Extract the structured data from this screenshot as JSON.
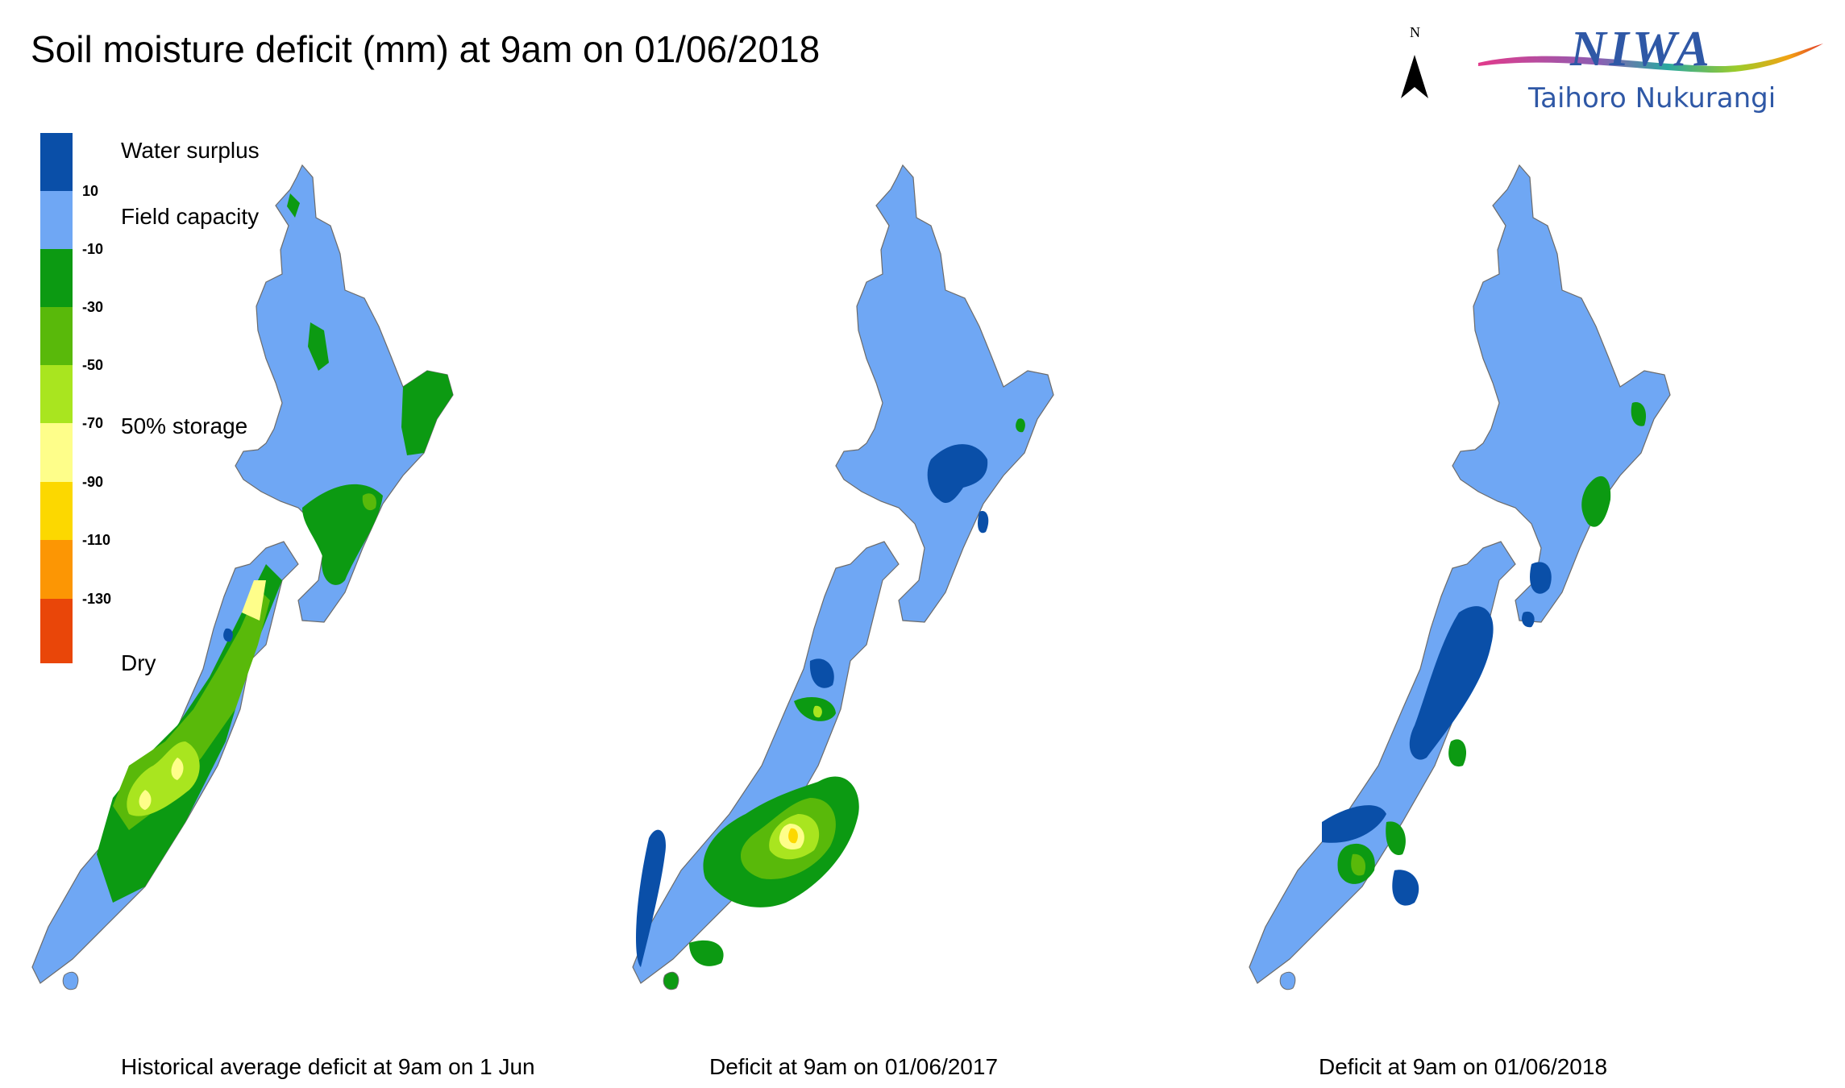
{
  "title": "Soil moisture deficit (mm) at  9am on 01/06/2018",
  "north_label": "N",
  "logo": {
    "brand": "NIWA",
    "subtitle": "Taihoro Nukurangi"
  },
  "legend": {
    "colors": [
      "#0a4fa8",
      "#6fa7f4",
      "#0c9a12",
      "#59b90a",
      "#a9e51f",
      "#fefe8a",
      "#fcd800",
      "#fc9604",
      "#e94609"
    ],
    "ticks": [
      "10",
      "-10",
      "-30",
      "-50",
      "-70",
      "-90",
      "-110",
      "-130"
    ],
    "labels": {
      "top": "Water surplus",
      "field": "Field capacity",
      "half": "50% storage",
      "dry": "Dry"
    }
  },
  "maps": [
    {
      "caption": "Historical average deficit at  9am on 1 Jun"
    },
    {
      "caption": "Deficit at  9am on 01/06/2017"
    },
    {
      "caption": "Deficit at  9am on 01/06/2018"
    }
  ]
}
